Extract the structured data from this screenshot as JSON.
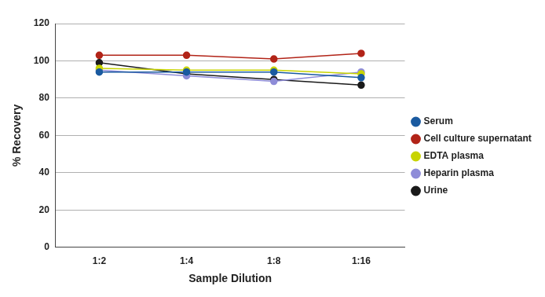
{
  "chart_data": {
    "type": "line",
    "x_label": "Sample Dilution",
    "y_label": "% Recovery",
    "categories": [
      "1:2",
      "1:4",
      "1:8",
      "1:16"
    ],
    "series": [
      {
        "name": "Serum",
        "color": "#1a5aa0",
        "values": [
          94,
          94,
          94,
          91
        ]
      },
      {
        "name": "Cell culture supernatant",
        "color": "#b22418",
        "values": [
          103,
          103,
          101,
          104
        ]
      },
      {
        "name": "EDTA plasma",
        "color": "#c8d400",
        "values": [
          96,
          95,
          95,
          93
        ]
      },
      {
        "name": "Heparin plasma",
        "color": "#8e8cd8",
        "values": [
          95,
          92,
          89,
          94
        ]
      },
      {
        "name": "Urine",
        "color": "#1a1a1a",
        "values": [
          99,
          93,
          90,
          87
        ]
      }
    ],
    "ylim": [
      0,
      120
    ],
    "yticks": [
      0,
      20,
      40,
      60,
      80,
      100,
      120
    ],
    "grid": true,
    "legend": "right",
    "marker": "circle"
  }
}
